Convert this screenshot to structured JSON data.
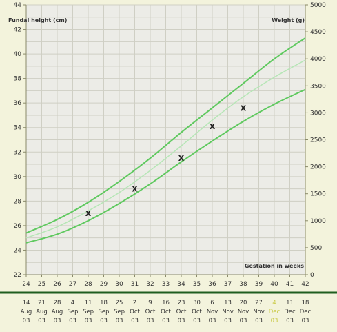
{
  "chart_data": {
    "type": "line",
    "left_axis_label": "Fundal height (cm)",
    "right_axis_label": "Weight (g)",
    "xlabel": "Gestation in weeks",
    "xlim": [
      24,
      42
    ],
    "ylim": [
      22,
      44
    ],
    "y2lim": [
      0,
      5000
    ],
    "x_ticks": [
      "24",
      "25",
      "26",
      "27",
      "28",
      "29",
      "30",
      "31",
      "32",
      "33",
      "34",
      "35",
      "36",
      "37",
      "38",
      "39",
      "40",
      "41",
      "42"
    ],
    "y_ticks": [
      "22",
      "24",
      "26",
      "28",
      "30",
      "32",
      "34",
      "36",
      "38",
      "40",
      "42",
      "44"
    ],
    "y2_ticks": [
      "0",
      "500",
      "1000",
      "1500",
      "2000",
      "2500",
      "3000",
      "3500",
      "4000",
      "4500",
      "5000"
    ],
    "grid": true,
    "series": [
      {
        "role": "upper",
        "color": "#5fc95f",
        "x": [
          24,
          26,
          28,
          30,
          32,
          34,
          36,
          38,
          40,
          42
        ],
        "y": [
          25.4,
          26.5,
          27.9,
          29.6,
          31.5,
          33.6,
          35.6,
          37.6,
          39.6,
          41.3
        ]
      },
      {
        "role": "middle",
        "color": "#b6e6b6",
        "x": [
          24,
          26,
          28,
          30,
          32,
          34,
          36,
          38,
          40,
          42
        ],
        "y": [
          25.0,
          25.9,
          27.2,
          28.7,
          30.5,
          32.5,
          34.6,
          36.5,
          38.1,
          39.5
        ]
      },
      {
        "role": "lower",
        "color": "#5fc95f",
        "x": [
          24,
          26,
          28,
          30,
          32,
          34,
          36,
          38,
          40,
          42
        ],
        "y": [
          24.6,
          25.3,
          26.4,
          27.8,
          29.4,
          31.2,
          32.9,
          34.5,
          35.9,
          37.1
        ]
      }
    ],
    "points": {
      "marker": "X",
      "x": [
        28,
        31,
        34,
        36,
        38
      ],
      "y": [
        27.0,
        29.0,
        31.5,
        34.1,
        35.6
      ]
    },
    "dates": [
      {
        "day": "14",
        "month": "Aug",
        "year": "03"
      },
      {
        "day": "21",
        "month": "Aug",
        "year": "03"
      },
      {
        "day": "28",
        "month": "Aug",
        "year": "03"
      },
      {
        "day": "4",
        "month": "Sep",
        "year": "03"
      },
      {
        "day": "11",
        "month": "Sep",
        "year": "03"
      },
      {
        "day": "18",
        "month": "Sep",
        "year": "03"
      },
      {
        "day": "25",
        "month": "Sep",
        "year": "03"
      },
      {
        "day": "2",
        "month": "Oct",
        "year": "03"
      },
      {
        "day": "9",
        "month": "Oct",
        "year": "03"
      },
      {
        "day": "16",
        "month": "Oct",
        "year": "03"
      },
      {
        "day": "23",
        "month": "Oct",
        "year": "03"
      },
      {
        "day": "30",
        "month": "Oct",
        "year": "03"
      },
      {
        "day": "6",
        "month": "Nov",
        "year": "03"
      },
      {
        "day": "13",
        "month": "Nov",
        "year": "03"
      },
      {
        "day": "20",
        "month": "Nov",
        "year": "03"
      },
      {
        "day": "27",
        "month": "Nov",
        "year": "03"
      },
      {
        "day": "4",
        "month": "Dec",
        "year": "03",
        "highlight": true
      },
      {
        "day": "11",
        "month": "Dec",
        "year": "03"
      },
      {
        "day": "18",
        "month": "Dec",
        "year": "03"
      }
    ],
    "colors": {
      "background": "#f3f3dc",
      "plot_background": "#ecece7",
      "grid": "#cfcfc4",
      "axis": "#8a8a6a",
      "text": "#333333",
      "divider": "#1f5e1f",
      "highlight_date": "#c8c840"
    }
  }
}
